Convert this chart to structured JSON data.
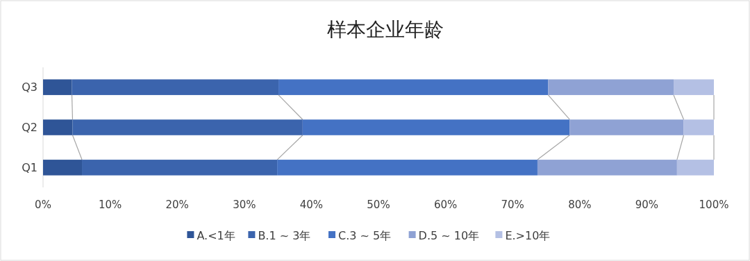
{
  "chart_data": {
    "type": "bar",
    "orientation": "horizontal",
    "stacked": true,
    "title": "样本企业年龄",
    "categories": [
      "Q3",
      "Q2",
      "Q1"
    ],
    "series": [
      {
        "name": "A.<1年",
        "color": "#2f5597",
        "values": [
          4.3,
          4.4,
          5.8
        ]
      },
      {
        "name": "B.1 ~ 3年",
        "color": "#3b64ad",
        "values": [
          30.8,
          34.3,
          29.1
        ]
      },
      {
        "name": "C.3 ~ 5年",
        "color": "#4472c4",
        "values": [
          40.2,
          39.8,
          38.8
        ]
      },
      {
        "name": "D.5 ~ 10年",
        "color": "#8fa2d4",
        "values": [
          18.7,
          17.0,
          20.8
        ]
      },
      {
        "name": "E.>10年",
        "color": "#b4c0e4",
        "values": [
          6.0,
          4.5,
          5.5
        ]
      }
    ],
    "xlim": [
      0,
      100
    ],
    "xticks": [
      {
        "value": 0,
        "label": "0%"
      },
      {
        "value": 10,
        "label": "10%"
      },
      {
        "value": 20,
        "label": "20%"
      },
      {
        "value": 30,
        "label": "30%"
      },
      {
        "value": 40,
        "label": "40%"
      },
      {
        "value": 50,
        "label": "50%"
      },
      {
        "value": 60,
        "label": "60%"
      },
      {
        "value": 70,
        "label": "70%"
      },
      {
        "value": 80,
        "label": "80%"
      },
      {
        "value": 90,
        "label": "90%"
      },
      {
        "value": 100,
        "label": "100%"
      }
    ],
    "grid": false,
    "legend": "bottom"
  }
}
